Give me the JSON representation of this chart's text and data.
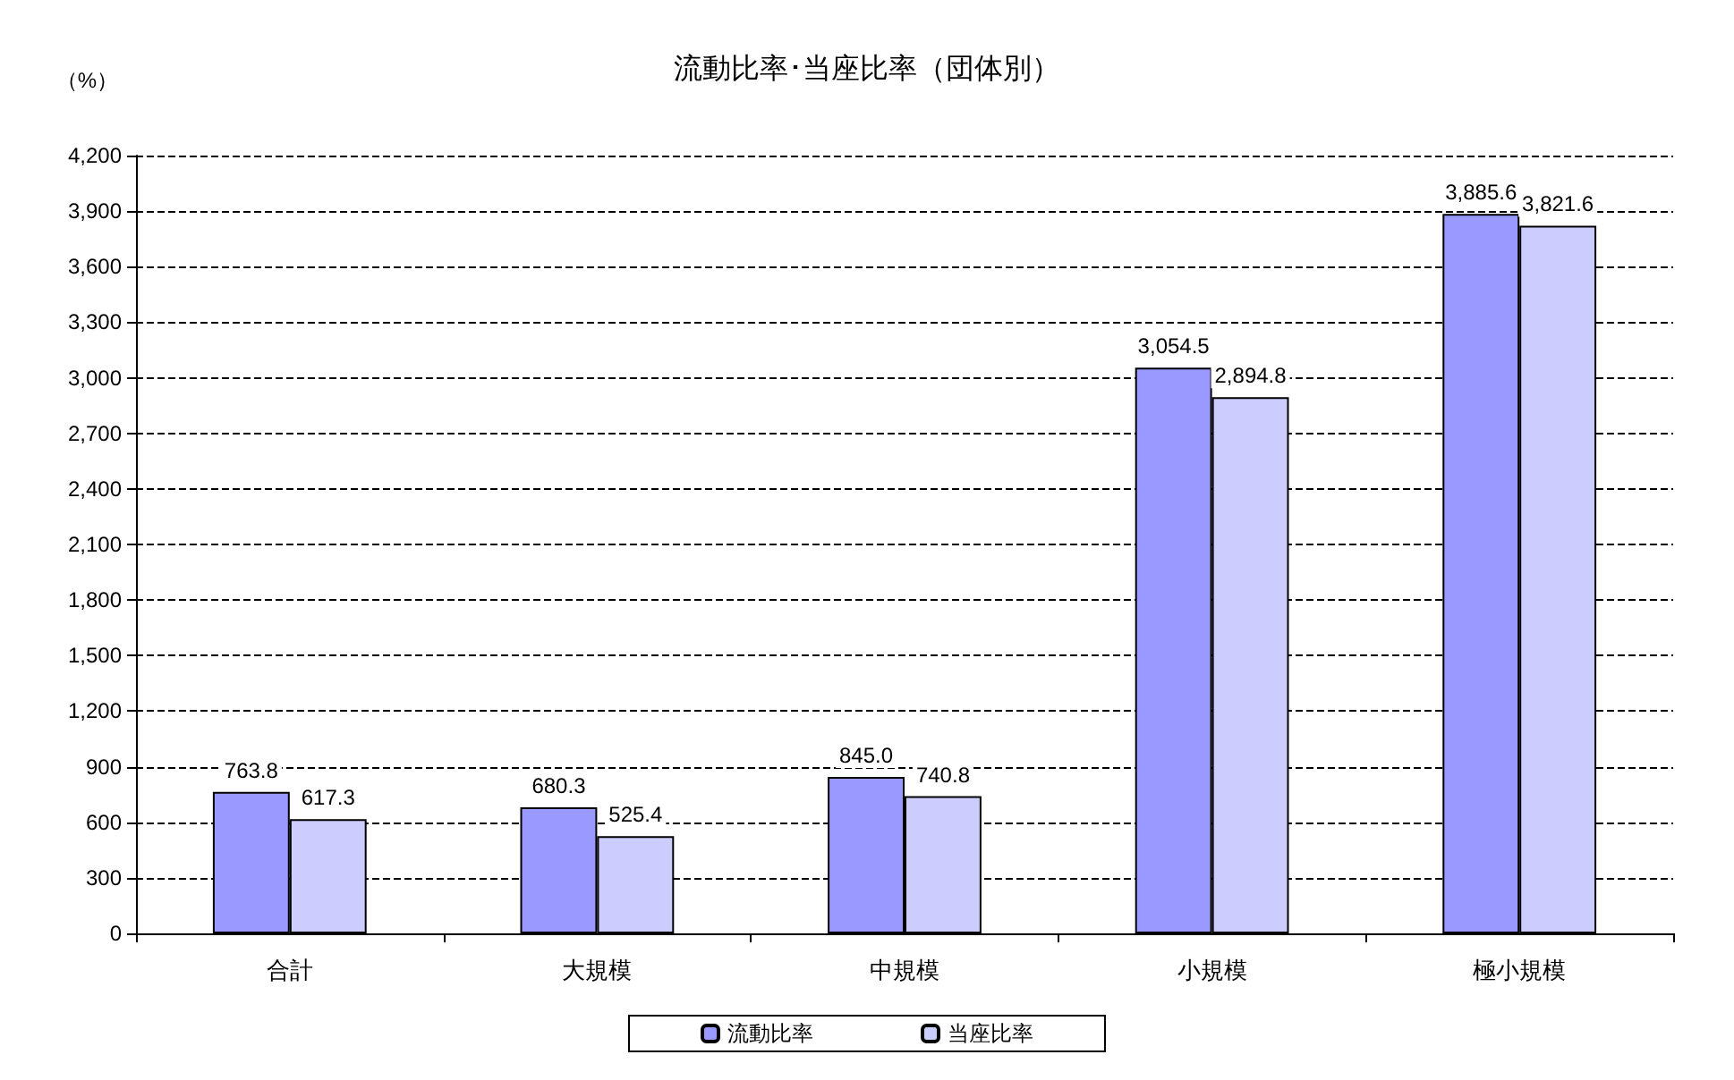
{
  "chart_data": {
    "type": "bar",
    "title": "流動比率･当座比率（団体別）",
    "ylabel": "（%）",
    "categories": [
      "合計",
      "大規模",
      "中規模",
      "小規模",
      "極小規模"
    ],
    "series": [
      {
        "name": "流動比率",
        "color": "#9999ff",
        "values": [
          763.8,
          680.3,
          845.0,
          3054.5,
          3885.6
        ],
        "value_labels": [
          "763.8",
          "680.3",
          "845.0",
          "3,054.5",
          "3,885.6"
        ]
      },
      {
        "name": "当座比率",
        "color": "#ccccff",
        "values": [
          617.3,
          525.4,
          740.8,
          2894.8,
          3821.6
        ],
        "value_labels": [
          "617.3",
          "525.4",
          "740.8",
          "2,894.8",
          "3,821.6"
        ]
      }
    ],
    "ylim": [
      0,
      4200
    ],
    "yticks": [
      0,
      300,
      600,
      900,
      {
        "value": 1200,
        "label": "1,200"
      },
      {
        "value": 1500,
        "label": "1,500"
      },
      {
        "value": 1800,
        "label": "1,800"
      },
      {
        "value": 2100,
        "label": "2,100"
      },
      {
        "value": 2400,
        "label": "2,400"
      },
      {
        "value": 2700,
        "label": "2,700"
      },
      {
        "value": 3000,
        "label": "3,000"
      },
      {
        "value": 3300,
        "label": "3,300"
      },
      {
        "value": 3600,
        "label": "3,600"
      },
      {
        "value": 3900,
        "label": "3,900"
      },
      {
        "value": 4200,
        "label": "4,200"
      }
    ],
    "grid": "y",
    "legend": "bottom"
  }
}
